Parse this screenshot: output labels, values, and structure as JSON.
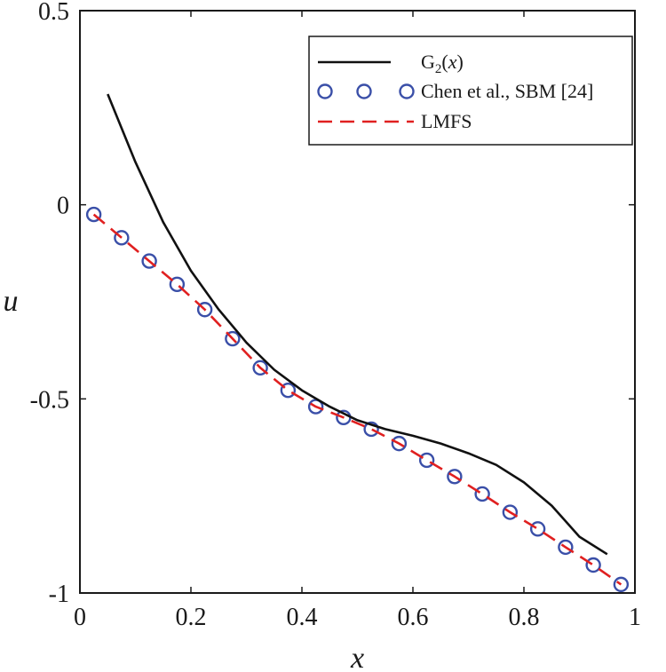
{
  "chart_data": {
    "type": "line",
    "title": "",
    "xlabel": "x",
    "ylabel": "u",
    "xlim": [
      0,
      1
    ],
    "ylim": [
      -1,
      0.5
    ],
    "xticks": [
      0,
      0.2,
      0.4,
      0.6,
      0.8,
      1
    ],
    "xtick_labels": [
      "0",
      "0.2",
      "0.4",
      "0.6",
      "0.8",
      "1"
    ],
    "yticks": [
      -1,
      -0.5,
      0,
      0.5
    ],
    "ytick_labels": [
      "-1",
      "-0.5",
      "0",
      "0.5"
    ],
    "grid": false,
    "legend_position": "top-right",
    "series": [
      {
        "name": "G₂(x)",
        "legend_main": "G",
        "legend_sub": "2",
        "legend_rest": "(x)",
        "style": "solid",
        "color": "#111111",
        "x": [
          0.05,
          0.1,
          0.15,
          0.2,
          0.25,
          0.3,
          0.35,
          0.4,
          0.45,
          0.5,
          0.55,
          0.6,
          0.65,
          0.7,
          0.75,
          0.8,
          0.85,
          0.9,
          0.95
        ],
        "y": [
          0.285,
          0.11,
          -0.045,
          -0.17,
          -0.27,
          -0.355,
          -0.425,
          -0.478,
          -0.52,
          -0.555,
          -0.578,
          -0.595,
          -0.615,
          -0.64,
          -0.67,
          -0.715,
          -0.775,
          -0.855,
          -0.9
        ]
      },
      {
        "name": "Chen et al., SBM [24]",
        "style": "markers",
        "color": "#3a4fa8",
        "x": [
          0.025,
          0.075,
          0.125,
          0.175,
          0.225,
          0.275,
          0.325,
          0.375,
          0.425,
          0.475,
          0.525,
          0.575,
          0.625,
          0.675,
          0.725,
          0.775,
          0.825,
          0.875,
          0.925,
          0.975
        ],
        "y": [
          -0.025,
          -0.085,
          -0.145,
          -0.205,
          -0.27,
          -0.345,
          -0.42,
          -0.478,
          -0.52,
          -0.548,
          -0.578,
          -0.615,
          -0.658,
          -0.7,
          -0.745,
          -0.792,
          -0.835,
          -0.882,
          -0.928,
          -0.978
        ]
      },
      {
        "name": "LMFS",
        "style": "dashed",
        "color": "#e02020",
        "x": [
          0.025,
          0.075,
          0.125,
          0.175,
          0.225,
          0.275,
          0.325,
          0.375,
          0.425,
          0.475,
          0.525,
          0.575,
          0.625,
          0.675,
          0.725,
          0.775,
          0.825,
          0.875,
          0.925,
          0.975
        ],
        "y": [
          -0.025,
          -0.085,
          -0.145,
          -0.205,
          -0.27,
          -0.345,
          -0.42,
          -0.478,
          -0.52,
          -0.548,
          -0.578,
          -0.615,
          -0.658,
          -0.7,
          -0.745,
          -0.792,
          -0.835,
          -0.882,
          -0.928,
          -0.978
        ]
      }
    ]
  }
}
